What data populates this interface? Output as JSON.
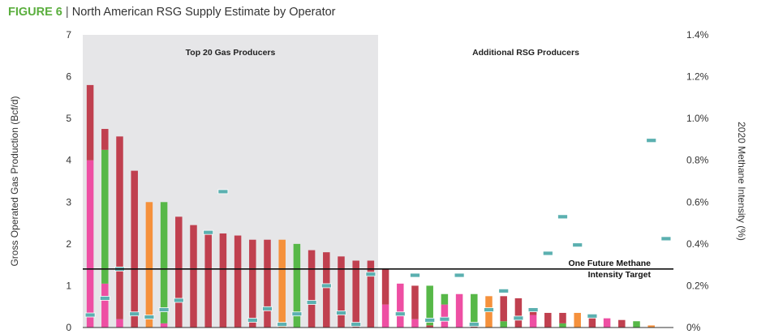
{
  "figure": {
    "number": "FIGURE 6",
    "separator": "|",
    "title": "North American RSG Supply Estimate by Operator"
  },
  "chart_data": {
    "type": "bar",
    "subtype": "stacked bar with marker overlay and reference line",
    "ylabel_left": "Gross Operated Gas Production (Bcf/d)",
    "ylabel_right": "2020 Methane Intensity (%)",
    "ylim_left": [
      0,
      7
    ],
    "yticks_left": [
      "0",
      "1",
      "2",
      "3",
      "4",
      "5",
      "6",
      "7"
    ],
    "ylim_right": [
      0,
      1.4
    ],
    "yticks_right": [
      "0%",
      "0.2%",
      "0.4%",
      "0.6%",
      "0.8%",
      "1.0%",
      "1.2%",
      "1.4%"
    ],
    "x_tick_labels_shown": false,
    "regions": [
      {
        "label": "Top 20 Gas Producers",
        "shaded": true,
        "bars": 20
      },
      {
        "label": "Additional RSG Producers",
        "shaded": false,
        "bars": 19
      }
    ],
    "reference_line": {
      "label_line1": "One Future Methane",
      "label_line2": "Intensity Target",
      "value_left_axis": 1.4
    },
    "colors": {
      "red": "#c0404f",
      "pink": "#ee4fa3",
      "green": "#57b848",
      "orange": "#f5913c",
      "marker": "#5bb0b0",
      "shade": "#e6e6e8",
      "axis": "#333333"
    },
    "bars": [
      {
        "segments": [
          {
            "color": "pink",
            "value": 4.0
          },
          {
            "color": "red",
            "value": 1.8
          }
        ],
        "methane_intensity": 0.06
      },
      {
        "segments": [
          {
            "color": "pink",
            "value": 1.05
          },
          {
            "color": "green",
            "value": 3.2
          },
          {
            "color": "red",
            "value": 0.5
          }
        ],
        "methane_intensity": 0.14
      },
      {
        "segments": [
          {
            "color": "pink",
            "value": 0.2
          },
          {
            "color": "red",
            "value": 4.37
          }
        ],
        "methane_intensity": 0.28
      },
      {
        "segments": [
          {
            "color": "red",
            "value": 3.75
          }
        ],
        "methane_intensity": 0.065
      },
      {
        "segments": [
          {
            "color": "orange",
            "value": 3.0
          }
        ],
        "methane_intensity": 0.05
      },
      {
        "segments": [
          {
            "color": "pink",
            "value": 0.1
          },
          {
            "color": "green",
            "value": 2.9
          }
        ],
        "methane_intensity": 0.085
      },
      {
        "segments": [
          {
            "color": "red",
            "value": 2.65
          }
        ],
        "methane_intensity": 0.13
      },
      {
        "segments": [
          {
            "color": "red",
            "value": 2.45
          }
        ],
        "methane_intensity": null
      },
      {
        "segments": [
          {
            "color": "red",
            "value": 2.3
          }
        ],
        "methane_intensity": 0.455
      },
      {
        "segments": [
          {
            "color": "red",
            "value": 2.25
          }
        ],
        "methane_intensity": 0.65
      },
      {
        "segments": [
          {
            "color": "red",
            "value": 2.2
          }
        ],
        "methane_intensity": null
      },
      {
        "segments": [
          {
            "color": "red",
            "value": 2.1
          }
        ],
        "methane_intensity": 0.035
      },
      {
        "segments": [
          {
            "color": "red",
            "value": 2.1
          }
        ],
        "methane_intensity": 0.09
      },
      {
        "segments": [
          {
            "color": "orange",
            "value": 2.1
          }
        ],
        "methane_intensity": 0.015
      },
      {
        "segments": [
          {
            "color": "green",
            "value": 2.0
          }
        ],
        "methane_intensity": 0.065
      },
      {
        "segments": [
          {
            "color": "red",
            "value": 1.85
          }
        ],
        "methane_intensity": 0.12
      },
      {
        "segments": [
          {
            "color": "red",
            "value": 1.8
          }
        ],
        "methane_intensity": 0.2
      },
      {
        "segments": [
          {
            "color": "red",
            "value": 1.7
          }
        ],
        "methane_intensity": 0.07
      },
      {
        "segments": [
          {
            "color": "red",
            "value": 1.6
          }
        ],
        "methane_intensity": 0.015
      },
      {
        "segments": [
          {
            "color": "red",
            "value": 1.6
          }
        ],
        "methane_intensity": 0.255
      },
      {
        "segments": [
          {
            "color": "pink",
            "value": 0.55
          },
          {
            "color": "red",
            "value": 0.85
          }
        ],
        "methane_intensity": null
      },
      {
        "segments": [
          {
            "color": "pink",
            "value": 1.05
          }
        ],
        "methane_intensity": 0.065
      },
      {
        "segments": [
          {
            "color": "pink",
            "value": 0.2
          },
          {
            "color": "red",
            "value": 0.8
          }
        ],
        "methane_intensity": 0.25
      },
      {
        "segments": [
          {
            "color": "red",
            "value": 0.05
          },
          {
            "color": "green",
            "value": 0.95
          }
        ],
        "methane_intensity": 0.035
      },
      {
        "segments": [
          {
            "color": "pink",
            "value": 0.55
          },
          {
            "color": "green",
            "value": 0.25
          }
        ],
        "methane_intensity": 0.04
      },
      {
        "segments": [
          {
            "color": "pink",
            "value": 0.8
          }
        ],
        "methane_intensity": 0.25
      },
      {
        "segments": [
          {
            "color": "red",
            "value": 0.05
          },
          {
            "color": "green",
            "value": 0.75
          }
        ],
        "methane_intensity": 0.015
      },
      {
        "segments": [
          {
            "color": "orange",
            "value": 0.75
          }
        ],
        "methane_intensity": 0.085
      },
      {
        "segments": [
          {
            "color": "green",
            "value": 0.15
          },
          {
            "color": "red",
            "value": 0.6
          }
        ],
        "methane_intensity": 0.175
      },
      {
        "segments": [
          {
            "color": "red",
            "value": 0.7
          }
        ],
        "methane_intensity": 0.045
      },
      {
        "segments": [
          {
            "color": "pink",
            "value": 0.3
          },
          {
            "color": "red",
            "value": 0.15
          }
        ],
        "methane_intensity": 0.085
      },
      {
        "segments": [
          {
            "color": "red",
            "value": 0.35
          }
        ],
        "methane_intensity": 0.355
      },
      {
        "segments": [
          {
            "color": "green",
            "value": 0.1
          },
          {
            "color": "red",
            "value": 0.25
          }
        ],
        "methane_intensity": 0.53
      },
      {
        "segments": [
          {
            "color": "orange",
            "value": 0.35
          }
        ],
        "methane_intensity": 0.395
      },
      {
        "segments": [
          {
            "color": "red",
            "value": 0.25
          }
        ],
        "methane_intensity": 0.055
      },
      {
        "segments": [
          {
            "color": "pink",
            "value": 0.22
          }
        ],
        "methane_intensity": null
      },
      {
        "segments": [
          {
            "color": "red",
            "value": 0.18
          }
        ],
        "methane_intensity": null
      },
      {
        "segments": [
          {
            "color": "green",
            "value": 0.15
          }
        ],
        "methane_intensity": null
      },
      {
        "segments": [
          {
            "color": "orange",
            "value": 0.05
          }
        ],
        "methane_intensity": 0.895
      },
      {
        "segments": [],
        "methane_intensity": 0.425
      }
    ]
  }
}
